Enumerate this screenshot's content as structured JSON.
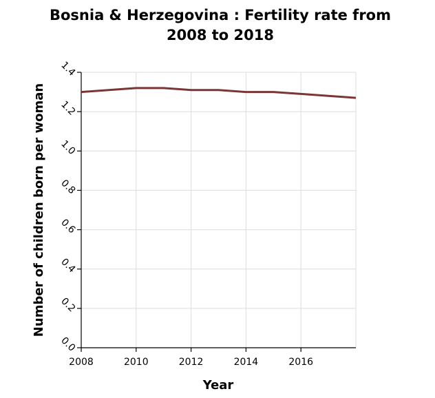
{
  "chart_data": {
    "type": "line",
    "title_lines": [
      "Bosnia & Herzegovina : Fertility rate from",
      "2008 to 2018"
    ],
    "xlabel": "Year",
    "ylabel": "Number of children born per woman",
    "xlim": [
      2008,
      2018
    ],
    "ylim": [
      0,
      1.4
    ],
    "x_ticks": [
      2008,
      2010,
      2012,
      2014,
      2016
    ],
    "x_tick_labels": [
      "2008",
      "2010",
      "2012",
      "2014",
      "2016"
    ],
    "y_ticks": [
      0,
      0.2,
      0.4,
      0.6,
      0.8,
      1.0,
      1.2,
      1.4
    ],
    "y_tick_labels": [
      "0.0",
      "0.2",
      "0.4",
      "0.6",
      "0.8",
      "1.0",
      "1.2",
      "1.4"
    ],
    "grid": true,
    "line_color": "#7b3535",
    "series": [
      {
        "x": [
          2008,
          2009,
          2010,
          2011,
          2012,
          2013,
          2014,
          2015,
          2016,
          2017,
          2018
        ],
        "values": [
          1.3,
          1.31,
          1.32,
          1.32,
          1.31,
          1.31,
          1.3,
          1.3,
          1.29,
          1.28,
          1.27
        ]
      }
    ]
  }
}
